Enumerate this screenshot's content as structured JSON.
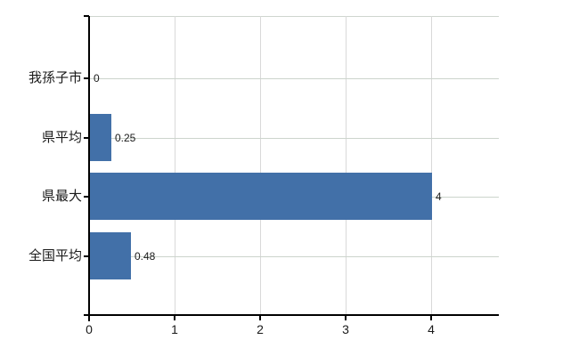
{
  "chart_data": {
    "type": "bar",
    "orientation": "horizontal",
    "title": "",
    "xlabel": "",
    "ylabel": "",
    "categories": [
      "我孫子市",
      "県平均",
      "県最大",
      "全国平均"
    ],
    "values": [
      0,
      0.25,
      4,
      0.48
    ],
    "value_labels": [
      "0",
      "0.25",
      "4",
      "0.48"
    ],
    "x_tick_labels": [
      "0",
      "1",
      "2",
      "3",
      "4"
    ],
    "x_tick_values": [
      0,
      1,
      2,
      3,
      4
    ],
    "xlim": [
      0,
      4.79
    ],
    "grid": true,
    "legend": false,
    "bar_color": "#4270a8",
    "axis_color": "#000000",
    "h_gridline_color": "#ccd4cc",
    "v_gridline_color": "#d9d9d9",
    "top_border_color": "#cfd5cf",
    "background_color": "#ffffff",
    "text_color": "#1a1a1a"
  }
}
